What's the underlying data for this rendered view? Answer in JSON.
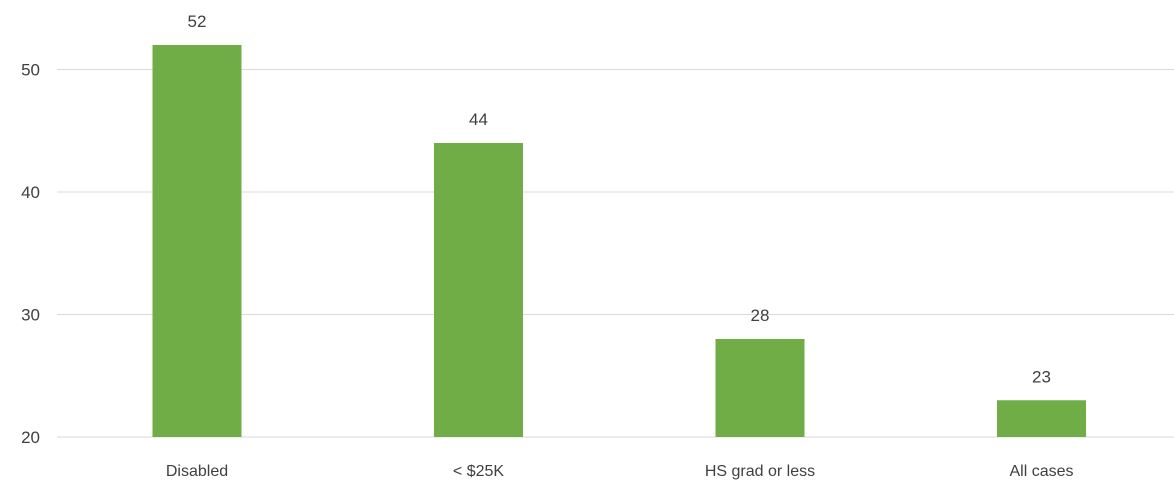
{
  "chart_data": {
    "type": "bar",
    "categories": [
      "Disabled",
      "< $25K",
      "HS grad or less",
      "All cases"
    ],
    "values": [
      52,
      44,
      28,
      23
    ],
    "data_labels": [
      "52",
      "44",
      "28",
      "23"
    ],
    "title": "",
    "xlabel": "",
    "ylabel": "",
    "ylim": [
      20,
      52
    ],
    "yticks": [
      20,
      30,
      40,
      50
    ],
    "ytick_labels": [
      "20",
      "30",
      "40",
      "50"
    ],
    "grid": true,
    "legend": "none",
    "bar_color": "#70ad47",
    "grid_color": "#d9d9d9",
    "text_color": "#404040"
  }
}
